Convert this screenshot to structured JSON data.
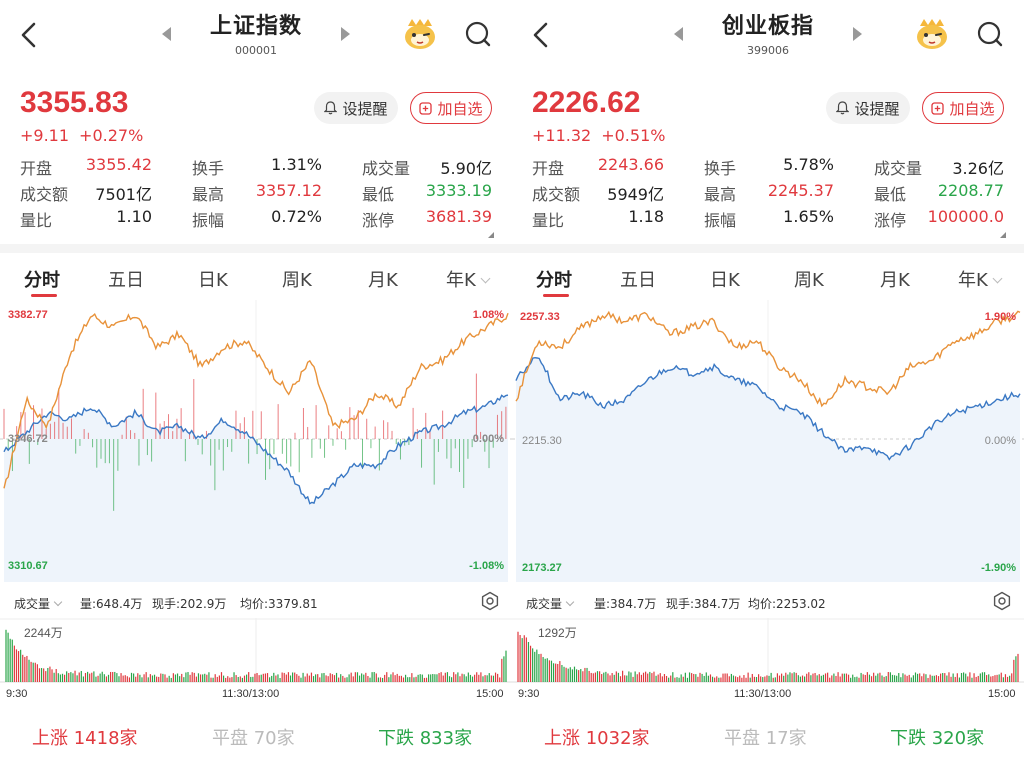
{
  "panels": [
    {
      "title": "上证指数",
      "code": "000001",
      "price": "3355.83",
      "change": "+9.11",
      "change_pct": "+0.27%",
      "alert_label": "设提醒",
      "fav_label": "加自选",
      "stats": [
        [
          {
            "label": "开盘",
            "value": "3355.42",
            "color": "red"
          },
          {
            "label": "换手",
            "value": "1.31%",
            "color": "dark"
          },
          {
            "label": "成交量",
            "value": "5.90亿",
            "color": "dark"
          }
        ],
        [
          {
            "label": "成交额",
            "value": "7501亿",
            "color": "dark"
          },
          {
            "label": "最高",
            "value": "3357.12",
            "color": "red"
          },
          {
            "label": "最低",
            "value": "3333.19",
            "color": "green"
          }
        ],
        [
          {
            "label": "量比",
            "value": "1.10",
            "color": "dark"
          },
          {
            "label": "振幅",
            "value": "0.72%",
            "color": "dark"
          },
          {
            "label": "涨停",
            "value": "3681.39",
            "color": "red"
          }
        ]
      ],
      "tabs": [
        "分时",
        "五日",
        "日K",
        "周K",
        "月K",
        "年K"
      ],
      "active_tab": "分时",
      "chart": {
        "y_top": "3382.77",
        "y_mid": "3346.72",
        "y_bottom": "3310.67",
        "pct_top": "1.08%",
        "pct_mid": "0.00%",
        "pct_bottom": "-1.08%"
      },
      "volume": {
        "selector": "成交量",
        "vol": "量:648.4万",
        "cur": "现手:202.9万",
        "avg": "均价:3379.81",
        "max_label": "2244万"
      },
      "times": [
        "9:30",
        "11:30/13:00",
        "15:00"
      ],
      "breadth": {
        "up_label": "上涨",
        "up_count": "1418家",
        "flat_label": "平盘",
        "flat_count": "70家",
        "down_label": "下跌",
        "down_count": "833家"
      }
    },
    {
      "title": "创业板指",
      "code": "399006",
      "price": "2226.62",
      "change": "+11.32",
      "change_pct": "+0.51%",
      "alert_label": "设提醒",
      "fav_label": "加自选",
      "stats": [
        [
          {
            "label": "开盘",
            "value": "2243.66",
            "color": "red"
          },
          {
            "label": "换手",
            "value": "5.78%",
            "color": "dark"
          },
          {
            "label": "成交量",
            "value": "3.26亿",
            "color": "dark"
          }
        ],
        [
          {
            "label": "成交额",
            "value": "5949亿",
            "color": "dark"
          },
          {
            "label": "最高",
            "value": "2245.37",
            "color": "red"
          },
          {
            "label": "最低",
            "value": "2208.77",
            "color": "green"
          }
        ],
        [
          {
            "label": "量比",
            "value": "1.18",
            "color": "dark"
          },
          {
            "label": "振幅",
            "value": "1.65%",
            "color": "dark"
          },
          {
            "label": "涨停",
            "value": "100000.0",
            "color": "red"
          }
        ]
      ],
      "tabs": [
        "分时",
        "五日",
        "日K",
        "周K",
        "月K",
        "年K"
      ],
      "active_tab": "分时",
      "chart": {
        "y_top": "2257.33",
        "y_mid": "2215.30",
        "y_bottom": "2173.27",
        "pct_top": "1.90%",
        "pct_mid": "0.00%",
        "pct_bottom": "-1.90%"
      },
      "volume": {
        "selector": "成交量",
        "vol": "量:384.7万",
        "cur": "现手:384.7万",
        "avg": "均价:2253.02",
        "max_label": "1292万"
      },
      "times": [
        "9:30",
        "11:30/13:00",
        "15:00"
      ],
      "breadth": {
        "up_label": "上涨",
        "up_count": "1032家",
        "flat_label": "平盘",
        "flat_count": "17家",
        "down_label": "下跌",
        "down_count": "320家"
      }
    }
  ],
  "colors": {
    "up": "#e0393e",
    "down": "#2aa54a",
    "price_line": "#e8923a",
    "avg_line": "#3a78c4",
    "flat": "#bbbbbb"
  },
  "icons": {
    "back": "chevron-left-icon",
    "prev": "triangle-left-icon",
    "next": "triangle-right-icon",
    "mascot": "mascot-icon",
    "search": "search-icon",
    "bell": "bell-icon",
    "plus": "plus-square-icon",
    "settings": "settings-icon"
  }
}
